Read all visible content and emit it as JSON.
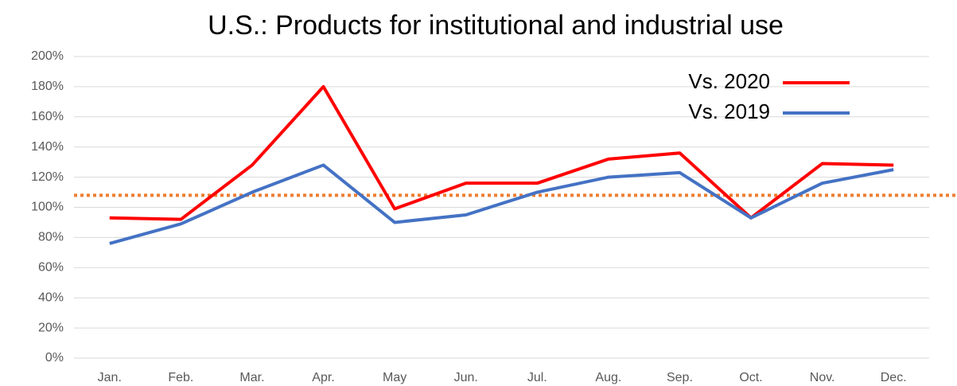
{
  "chart_data": {
    "type": "line",
    "title": "U.S.: Products for institutional and industrial use",
    "categories": [
      "Jan.",
      "Feb.",
      "Mar.",
      "Apr.",
      "May",
      "Jun.",
      "Jul.",
      "Aug.",
      "Sep.",
      "Oct.",
      "Nov.",
      "Dec."
    ],
    "series": [
      {
        "name": "Vs. 2020",
        "color": "#ff0000",
        "values": [
          93,
          92,
          128,
          180,
          99,
          116,
          116,
          132,
          136,
          93,
          129,
          128
        ]
      },
      {
        "name": "Vs. 2019",
        "color": "#4472c4",
        "values": [
          76,
          89,
          110,
          128,
          90,
          95,
          110,
          120,
          123,
          93,
          116,
          125
        ]
      }
    ],
    "reference_line": {
      "value": 108,
      "color": "#ed7d31"
    },
    "ylim": [
      0,
      200
    ],
    "yticks": [
      {
        "value": 0,
        "label": "0%"
      },
      {
        "value": 20,
        "label": "20%"
      },
      {
        "value": 40,
        "label": "40%"
      },
      {
        "value": 60,
        "label": "60%"
      },
      {
        "value": 80,
        "label": "80%"
      },
      {
        "value": 100,
        "label": "100%"
      },
      {
        "value": 120,
        "label": "120%"
      },
      {
        "value": 140,
        "label": "140%"
      },
      {
        "value": 160,
        "label": "160%"
      },
      {
        "value": 180,
        "label": "180%"
      },
      {
        "value": 200,
        "label": "200%"
      }
    ],
    "grid": true,
    "legend": "top-right"
  }
}
